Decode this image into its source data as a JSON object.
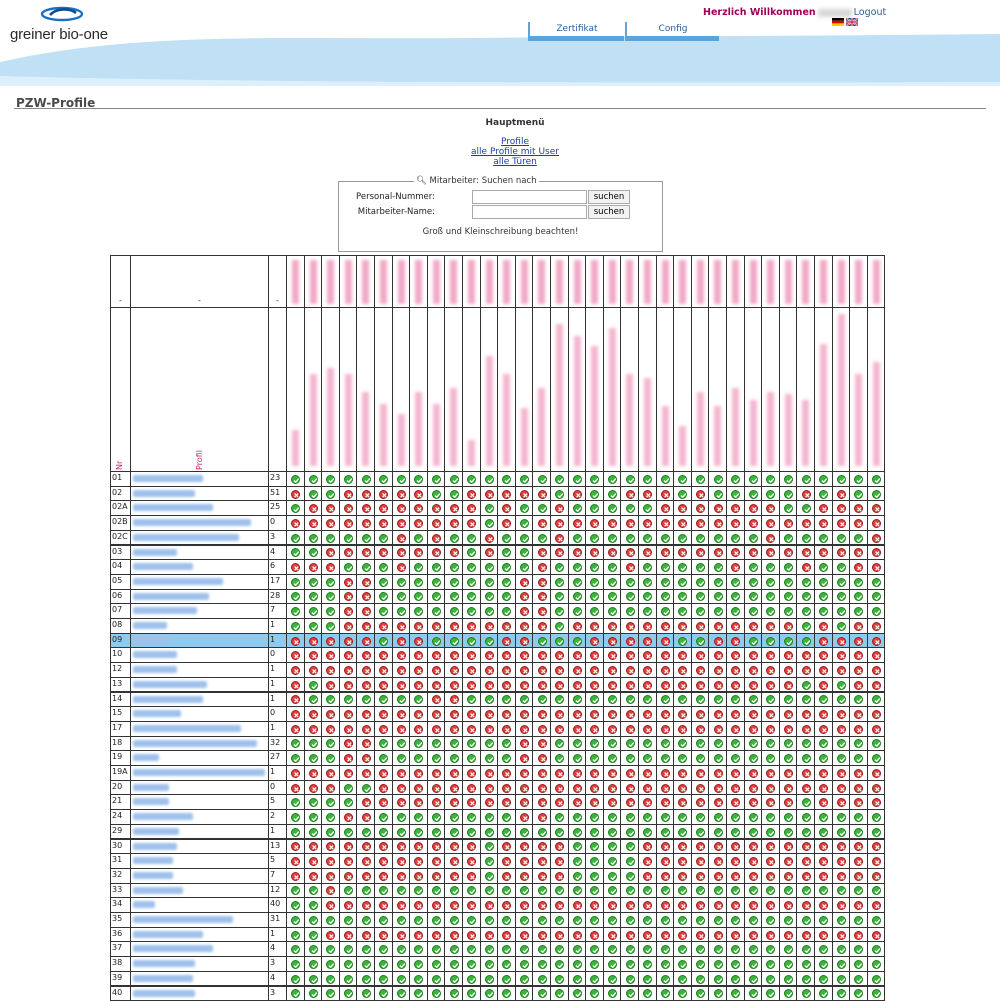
{
  "header": {
    "logo_text": "greiner bio-one",
    "nav": [
      {
        "label": "Zertifikat"
      },
      {
        "label": "Config"
      }
    ],
    "welcome_prefix": "Herzlich Willkommen",
    "logout_label": "Logout",
    "flags": [
      "de-flag",
      "gb-flag"
    ]
  },
  "page": {
    "title": "PZW-Profile",
    "menu_title": "Hauptmenü",
    "links": [
      "Profile",
      "alle Profile mit User",
      "alle Türen"
    ]
  },
  "search": {
    "legend": "Mitarbeiter: Suchen nach",
    "fields": [
      {
        "label": "Personal-Nummer:",
        "value": "",
        "button": "suchen"
      },
      {
        "label": "Mitarbeiter-Name:",
        "value": "",
        "button": "suchen"
      }
    ],
    "note": "Groß und Kleinschreibung beachten!"
  },
  "table": {
    "header_dash": "-",
    "col_nr_label": "Nr",
    "col_profil_label": "Profil",
    "door_count": 34,
    "highlight_row": "09",
    "rows": [
      {
        "nr": "01",
        "count": "23",
        "cells": "1111111111111111111111111111111111"
      },
      {
        "nr": "02",
        "count": "51",
        "cells": "0110000011000001011000101111101011"
      },
      {
        "nr": "02A",
        "count": "25",
        "cells": "1000000000010110111110000000110000"
      },
      {
        "nr": "02B",
        "count": "0",
        "cells": "0000000000010100000000000000000000"
      },
      {
        "nr": "02C",
        "count": "3",
        "cells": "1111110101101110111111111110111110"
      },
      {
        "nr": "03",
        "count": "4",
        "cells": "1100000000101100000000000000000000"
      },
      {
        "nr": "04",
        "count": "6",
        "cells": "0001110111111101111011111011101100"
      },
      {
        "nr": "05",
        "count": "17",
        "cells": "1110011111111001111111111111111111"
      },
      {
        "nr": "06",
        "count": "28",
        "cells": "1110011111111001111111111111111111"
      },
      {
        "nr": "07",
        "count": "7",
        "cells": "1110011111111001111111111111111111"
      },
      {
        "nr": "08",
        "count": "1",
        "cells": "1110000000000001000000000000010100"
      },
      {
        "nr": "09",
        "count": "1",
        "cells": "0000010011110011100000110011110000"
      },
      {
        "nr": "10",
        "count": "0",
        "cells": "0000000000000000000000000000000000"
      },
      {
        "nr": "12",
        "count": "1",
        "cells": "0000000000000000000000000000000000"
      },
      {
        "nr": "13",
        "count": "1",
        "cells": "0100000000000000000000000000010100"
      },
      {
        "nr": "14",
        "count": "1",
        "cells": "0111111100111111111111111111111111"
      },
      {
        "nr": "15",
        "count": "0",
        "cells": "0000000000000000000000000000000000"
      },
      {
        "nr": "17",
        "count": "1",
        "cells": "0000000000000000000000000000000000"
      },
      {
        "nr": "18",
        "count": "32",
        "cells": "1110011111111001111111111111111111"
      },
      {
        "nr": "19",
        "count": "27",
        "cells": "1110011111111001111111111111111111"
      },
      {
        "nr": "19A",
        "count": "1",
        "cells": "0000000000000000000000000000000000"
      },
      {
        "nr": "20",
        "count": "0",
        "cells": "0001100000000000000000000000000000"
      },
      {
        "nr": "21",
        "count": "5",
        "cells": "1111000000000000000000000000010000"
      },
      {
        "nr": "24",
        "count": "2",
        "cells": "1110011111111001111111111111111111"
      },
      {
        "nr": "29",
        "count": "1",
        "cells": "1111111111111111111111111111111111"
      },
      {
        "nr": "30",
        "count": "13",
        "cells": "0000000000010000111100000000000000"
      },
      {
        "nr": "31",
        "count": "5",
        "cells": "0000000000010000111100000000000000"
      },
      {
        "nr": "32",
        "count": "7",
        "cells": "0000000000010000111100000000000000"
      },
      {
        "nr": "33",
        "count": "12",
        "cells": "1101111111111111111111111111111111"
      },
      {
        "nr": "34",
        "count": "40",
        "cells": "1100000000000000000000000000000000"
      },
      {
        "nr": "35",
        "count": "31",
        "cells": "1111111111111111111111111111111111"
      },
      {
        "nr": "36",
        "count": "1",
        "cells": "1100000000000000000000000000000000"
      },
      {
        "nr": "37",
        "count": "4",
        "cells": "1111111111111111111111111111111111"
      },
      {
        "nr": "38",
        "count": "3",
        "cells": "1111111111111111111111111111111111"
      },
      {
        "nr": "39",
        "count": "4",
        "cells": "1111111111111111111111111111111111"
      },
      {
        "nr": "40",
        "count": "3",
        "cells": "1111111111111111111111111111111111"
      }
    ]
  },
  "colors": {
    "wave": "#bfe0f5",
    "nav_accent": "#5aa6dc",
    "highlight": "#8ecbf0",
    "ok": "#3bb53b",
    "no": "#e04141",
    "label_pink": "#d0206a"
  }
}
